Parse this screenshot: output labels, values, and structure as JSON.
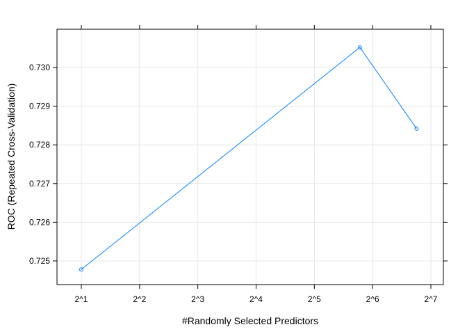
{
  "chart_data": {
    "type": "line",
    "xlabel": "#Randomly Selected Predictors",
    "ylabel": "ROC (Repeated Cross-Validation)",
    "x_scale": "log2",
    "x_ticks": [
      1,
      2,
      3,
      4,
      5,
      6,
      7
    ],
    "x_tick_labels": [
      "2^1",
      "2^2",
      "2^3",
      "2^4",
      "2^5",
      "2^6",
      "2^7"
    ],
    "y_ticks": [
      0.725,
      0.726,
      0.727,
      0.728,
      0.729,
      0.73
    ],
    "y_tick_labels": [
      "0.725",
      "0.726",
      "0.727",
      "0.728",
      "0.729",
      "0.730"
    ],
    "xlim": [
      2,
      128
    ],
    "ylim": [
      0.7243,
      0.7312
    ],
    "grid": true,
    "series": [
      {
        "x": [
          2,
          55,
          108
        ],
        "y": [
          0.72478,
          0.73052,
          0.72842
        ],
        "color": "#0080ff"
      }
    ]
  }
}
